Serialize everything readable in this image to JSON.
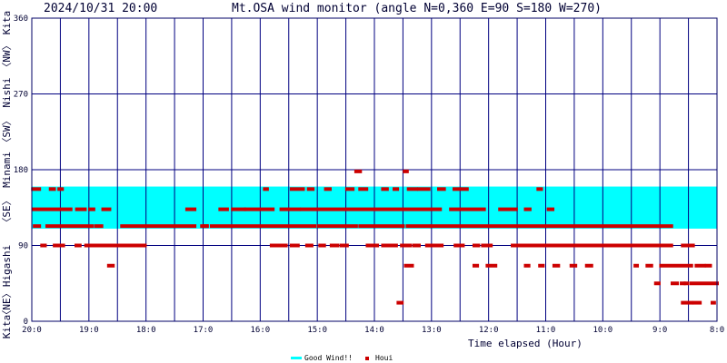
{
  "header": {
    "datetime": "2024/10/31 20:00",
    "title": "Mt.OSA wind monitor (angle N=0,360 E=90 S=180 W=270)"
  },
  "side_labels": [
    "Kita",
    "〈NE〉",
    "Higashi",
    "〈SE〉",
    "Minami",
    "〈SW〉",
    "Nishi",
    "〈NW〉",
    "Kita"
  ],
  "legend": {
    "good_label": "Good Wind!!",
    "houi_label": "Houi"
  },
  "colors": {
    "plot_border": "#000066",
    "grid": "#000080",
    "good_band": "#00ffff",
    "houi_marks": "#cc0000",
    "text": "#000033"
  },
  "chart_data": {
    "type": "scatter",
    "title": "Mt.OSA wind monitor (angle N=0,360 E=90 S=180 W=270)",
    "xlabel": "Time elapsed (Hour)",
    "ylabel": "",
    "x_ticks": [
      "20:0",
      "19:0",
      "18:0",
      "17:0",
      "16:0",
      "15:0",
      "14:0",
      "13:0",
      "12:0",
      "11:0",
      "10:0",
      "9:0",
      "8:0"
    ],
    "x_range_hours_elapsed": [
      0,
      12
    ],
    "y_ticks": [
      "0",
      "90",
      "180",
      "270",
      "360"
    ],
    "ylim": [
      0,
      360
    ],
    "grid": true,
    "good_wind_band": [
      110,
      160
    ],
    "series": [
      {
        "name": "Houi",
        "segments": [
          {
            "y": 157,
            "x": [
              [
                0.02,
                0.13
              ],
              [
                0.33,
                0.39
              ],
              [
                0.48,
                0.53
              ]
            ]
          },
          {
            "y": 133,
            "x": [
              [
                0.03,
                0.68
              ],
              [
                0.79,
                0.93
              ],
              [
                1.02,
                1.08
              ],
              [
                1.25,
                1.36
              ]
            ]
          },
          {
            "y": 113,
            "x": [
              [
                0.05,
                0.13
              ],
              [
                0.27,
                1.05
              ],
              [
                1.12,
                1.22
              ],
              [
                1.58,
                2.85
              ],
              [
                2.98,
                3.07
              ]
            ]
          },
          {
            "y": 90,
            "x": [
              [
                0.18,
                0.23
              ],
              [
                0.4,
                0.55
              ],
              [
                0.78,
                0.84
              ],
              [
                0.95,
                1.02
              ],
              [
                1.08,
                1.7
              ],
              [
                1.74,
                1.98
              ]
            ]
          },
          {
            "y": 66,
            "x": [
              [
                1.35,
                1.42
              ]
            ]
          },
          {
            "y": 133,
            "x": [
              [
                2.72,
                2.85
              ],
              [
                3.3,
                3.42
              ],
              [
                3.52,
                3.72
              ],
              [
                3.75,
                4.22
              ],
              [
                4.37,
                4.68
              ],
              [
                4.73,
                7.15
              ],
              [
                7.34,
                7.92
              ],
              [
                8.2,
                8.48
              ],
              [
                8.65,
                8.72
              ],
              [
                9.05,
                9.12
              ]
            ]
          },
          {
            "y": 113,
            "x": [
              [
                3.02,
                3.06
              ],
              [
                3.15,
                4.95
              ],
              [
                5.02,
                5.68
              ],
              [
                5.75,
                6.5
              ],
              [
                6.58,
                6.95
              ],
              [
                7.0,
                11.2
              ]
            ]
          },
          {
            "y": 157,
            "x": [
              [
                4.08,
                4.12
              ],
              [
                4.55,
                4.75
              ],
              [
                4.85,
                4.92
              ],
              [
                5.15,
                5.22
              ],
              [
                5.52,
                5.62
              ],
              [
                5.75,
                5.86
              ],
              [
                6.15,
                6.22
              ],
              [
                6.35,
                6.4
              ],
              [
                6.6,
                6.73
              ],
              [
                6.78,
                6.95
              ],
              [
                7.13,
                7.22
              ],
              [
                7.4,
                7.62
              ],
              [
                8.87,
                8.92
              ]
            ]
          },
          {
            "y": 90,
            "x": [
              [
                4.2,
                4.45
              ],
              [
                4.55,
                4.66
              ],
              [
                4.82,
                4.9
              ],
              [
                5.05,
                5.12
              ],
              [
                5.25,
                5.35
              ],
              [
                5.42,
                5.52
              ],
              [
                5.88,
                6.05
              ],
              [
                6.15,
                6.38
              ],
              [
                6.48,
                6.63
              ],
              [
                6.7,
                6.78
              ],
              [
                6.92,
                6.97
              ],
              [
                7.03,
                7.18
              ],
              [
                7.42,
                7.55
              ],
              [
                7.75,
                7.82
              ],
              [
                7.9,
                8.04
              ],
              [
                8.42,
                8.65
              ],
              [
                8.68,
                9.58
              ],
              [
                9.62,
                11.2
              ],
              [
                11.4,
                11.58
              ]
            ]
          },
          {
            "y": 178,
            "x": [
              [
                5.68,
                5.75
              ],
              [
                6.53,
                6.57
              ]
            ]
          },
          {
            "y": 66,
            "x": [
              [
                6.55,
                6.66
              ],
              [
                7.75,
                7.8
              ],
              [
                7.98,
                8.12
              ],
              [
                8.65,
                8.7
              ],
              [
                8.9,
                8.95
              ],
              [
                9.15,
                9.22
              ],
              [
                9.45,
                9.52
              ],
              [
                9.72,
                9.8
              ],
              [
                10.57,
                10.6
              ],
              [
                10.78,
                10.85
              ],
              [
                11.02,
                11.55
              ],
              [
                11.64,
                11.77
              ],
              [
                11.82,
                11.88
              ]
            ]
          },
          {
            "y": 22,
            "x": [
              [
                6.42,
                6.48
              ],
              [
                11.4,
                11.55
              ],
              [
                11.6,
                11.7
              ],
              [
                11.92,
                11.95
              ]
            ]
          },
          {
            "y": 45,
            "x": [
              [
                10.93,
                10.98
              ],
              [
                11.22,
                11.3
              ],
              [
                11.38,
                11.42
              ],
              [
                11.45,
                11.48
              ],
              [
                11.55,
                12.0
              ]
            ]
          }
        ]
      }
    ]
  }
}
